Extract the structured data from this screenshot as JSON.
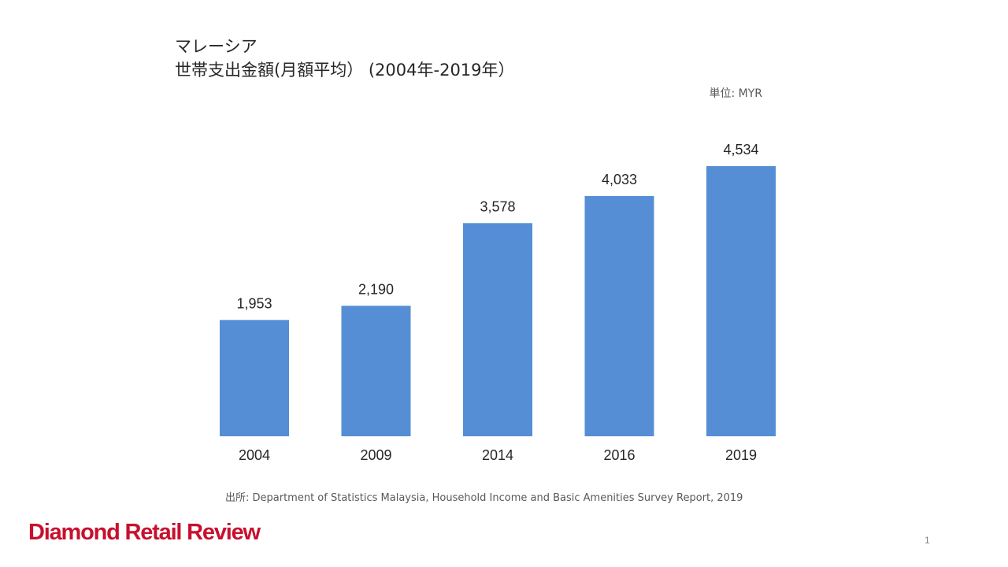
{
  "slide": {
    "title_line1": "マレーシア",
    "title_line2": "世帯支出金額(月額平均） (2004年-2019年）",
    "unit": "単位: MYR",
    "source": "出所: Department of Statistics Malaysia, Household Income and Basic Amenities Survey Report, 2019",
    "logo_text": "Diamond Retail Review",
    "page_number": "1"
  },
  "colors": {
    "bar": "#558ED5",
    "logo": "#C8102E"
  },
  "chart_data": {
    "type": "bar",
    "title": "世帯支出金額(月額平均） (2004年-2019年）",
    "ylabel": "単位: MYR",
    "xlabel": "",
    "categories": [
      "2004",
      "2009",
      "2014",
      "2016",
      "2019"
    ],
    "values": [
      1953,
      2190,
      3578,
      4033,
      4534
    ],
    "value_labels": [
      "1,953",
      "2,190",
      "3,578",
      "4,033",
      "4,534"
    ],
    "ylim": [
      0,
      4534
    ],
    "grid": false,
    "legend": "none"
  }
}
